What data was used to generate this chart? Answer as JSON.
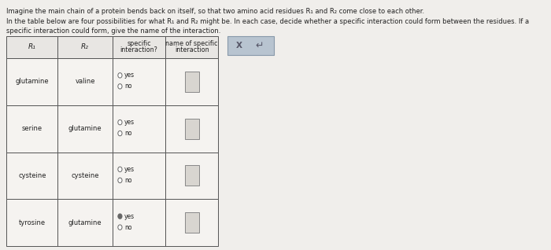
{
  "title_line1": "Imagine the main chain of a protein bends back on itself, so that two amino acid residues R₁ and R₂ come close to each other.",
  "title_line2": "In the table below are four possibilities for what R₁ and R₂ might be. In each case, decide whether a specific interaction could form between the residues. If a",
  "title_line3": "specific interaction could form, give the name of the interaction.",
  "col_headers_line1": [
    "R₁",
    "R₂",
    "specific",
    "name of specific"
  ],
  "col_headers_line2": [
    "",
    "",
    "interaction?",
    "interaction"
  ],
  "rows": [
    [
      "glutamine",
      "valine"
    ],
    [
      "serine",
      "glutamine"
    ],
    [
      "cysteine",
      "cysteine"
    ],
    [
      "tyrosine",
      "glutamine"
    ]
  ],
  "bg_color": "#e8e8e8",
  "page_color": "#f0eeeb",
  "table_bg": "#f5f3f0",
  "header_bg": "#e8e6e3",
  "border_color": "#555555",
  "text_color": "#222222",
  "radio_color": "#666666",
  "radio_fill": "#666666",
  "answer_box_fill": "#d8d5d0",
  "answer_box_border": "#888888",
  "btn_bg": "#b8c4d0",
  "btn_border": "#8899aa",
  "btn_text": "#555566"
}
